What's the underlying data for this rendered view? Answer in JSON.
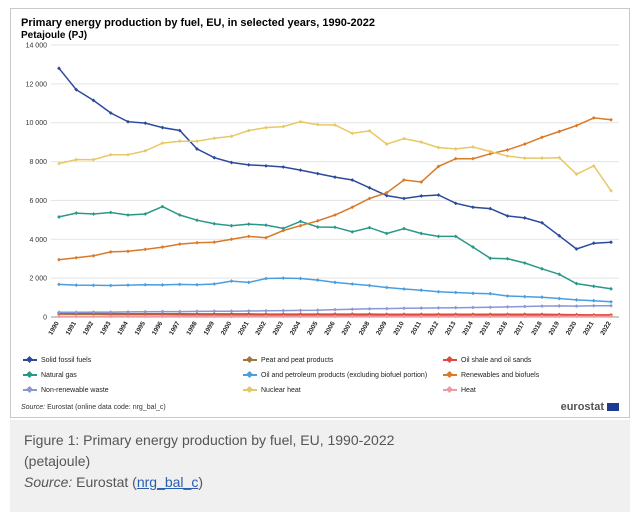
{
  "chart_data": {
    "type": "line",
    "title": "Primary energy production by fuel, EU, in selected years, 1990-2022",
    "subtitle": "Petajoule (PJ)",
    "ylim": [
      0,
      14000
    ],
    "yticks": [
      "0",
      "2 000",
      "4 000",
      "6 000",
      "8 000",
      "10 000",
      "12 000",
      "14 000"
    ],
    "ytick_values": [
      0,
      2000,
      4000,
      6000,
      8000,
      10000,
      12000,
      14000
    ],
    "grid": true,
    "legend_position": "bottom",
    "x": [
      "1990",
      "1991",
      "1992",
      "1993",
      "1994",
      "1995",
      "1996",
      "1997",
      "1998",
      "1999",
      "2000",
      "2001",
      "2002",
      "2003",
      "2004",
      "2005",
      "2006",
      "2007",
      "2008",
      "2009",
      "2010",
      "2011",
      "2012",
      "2013",
      "2014",
      "2015",
      "2016",
      "2017",
      "2018",
      "2019",
      "2020",
      "2021",
      "2022"
    ],
    "series": [
      {
        "name": "Solid fossil fuels",
        "color": "#2b4a9c",
        "values": [
          12800,
          11700,
          11150,
          10500,
          10050,
          9980,
          9750,
          9600,
          8650,
          8200,
          7950,
          7830,
          7780,
          7720,
          7560,
          7380,
          7200,
          7050,
          6650,
          6250,
          6100,
          6230,
          6280,
          5850,
          5650,
          5580,
          5200,
          5100,
          4850,
          4180,
          3500,
          3800,
          3850
        ]
      },
      {
        "name": "Peat and peat products",
        "color": "#a0763a",
        "values": [
          150,
          140,
          140,
          130,
          130,
          130,
          130,
          120,
          120,
          110,
          110,
          110,
          100,
          100,
          100,
          100,
          100,
          90,
          90,
          90,
          90,
          90,
          80,
          80,
          80,
          80,
          70,
          70,
          70,
          60,
          50,
          50,
          50
        ]
      },
      {
        "name": "Oil shale and oil sands",
        "color": "#e0483a",
        "values": [
          210,
          200,
          190,
          180,
          170,
          170,
          170,
          170,
          160,
          160,
          160,
          160,
          150,
          150,
          150,
          150,
          150,
          150,
          150,
          140,
          140,
          140,
          140,
          140,
          140,
          140,
          140,
          140,
          140,
          130,
          120,
          110,
          110
        ]
      },
      {
        "name": "Natural gas",
        "color": "#2a9889",
        "values": [
          5150,
          5350,
          5300,
          5380,
          5250,
          5300,
          5680,
          5250,
          4980,
          4800,
          4700,
          4780,
          4730,
          4560,
          4920,
          4630,
          4620,
          4380,
          4600,
          4300,
          4550,
          4300,
          4150,
          4150,
          3600,
          3020,
          3000,
          2780,
          2480,
          2200,
          1720,
          1580,
          1450
        ]
      },
      {
        "name": "Oil and petroleum products (excluding biofuel portion)",
        "color": "#4a9ee0",
        "values": [
          1680,
          1640,
          1630,
          1620,
          1640,
          1660,
          1650,
          1680,
          1660,
          1700,
          1850,
          1780,
          1980,
          2000,
          1980,
          1900,
          1780,
          1700,
          1620,
          1520,
          1440,
          1380,
          1300,
          1260,
          1220,
          1200,
          1080,
          1050,
          1020,
          950,
          880,
          840,
          780
        ]
      },
      {
        "name": "Renewables and biofuels",
        "color": "#d97a28",
        "values": [
          2950,
          3050,
          3150,
          3350,
          3380,
          3480,
          3600,
          3750,
          3820,
          3850,
          4000,
          4150,
          4080,
          4450,
          4700,
          4950,
          5250,
          5650,
          6100,
          6400,
          7050,
          6950,
          7750,
          8150,
          8150,
          8400,
          8600,
          8900,
          9250,
          9550,
          9850,
          10250,
          10150
        ]
      },
      {
        "name": "Non-renewable waste",
        "color": "#8a97d4",
        "values": [
          240,
          240,
          250,
          250,
          260,
          270,
          280,
          280,
          290,
          300,
          300,
          310,
          320,
          330,
          340,
          350,
          380,
          400,
          420,
          430,
          450,
          460,
          470,
          480,
          490,
          500,
          520,
          540,
          560,
          570,
          560,
          580,
          580
        ]
      },
      {
        "name": "Nuclear heat",
        "color": "#e8c865",
        "values": [
          7900,
          8100,
          8100,
          8350,
          8350,
          8550,
          8950,
          9050,
          9050,
          9200,
          9300,
          9600,
          9750,
          9800,
          10050,
          9900,
          9880,
          9450,
          9580,
          8900,
          9180,
          9000,
          8720,
          8650,
          8750,
          8520,
          8280,
          8180,
          8180,
          8200,
          7350,
          7780,
          6500
        ]
      },
      {
        "name": "Heat",
        "color": "#ee9aa0",
        "values": [
          30,
          30,
          30,
          30,
          30,
          30,
          30,
          30,
          30,
          30,
          30,
          30,
          30,
          30,
          30,
          30,
          30,
          30,
          30,
          30,
          30,
          30,
          30,
          30,
          30,
          30,
          30,
          30,
          30,
          30,
          30,
          30,
          30
        ]
      }
    ]
  },
  "source_label": "Source:",
  "source_text": "Eurostat (online data code: nrg_bal_c)",
  "brand": "eurostat",
  "caption": {
    "line1": "Figure 1: Primary energy production by fuel, EU, 1990-2022",
    "line2": "(petajoule)",
    "source_label": "Source:",
    "source_text": "Eurostat (",
    "source_link": "nrg_bal_c",
    "source_close": ")"
  }
}
